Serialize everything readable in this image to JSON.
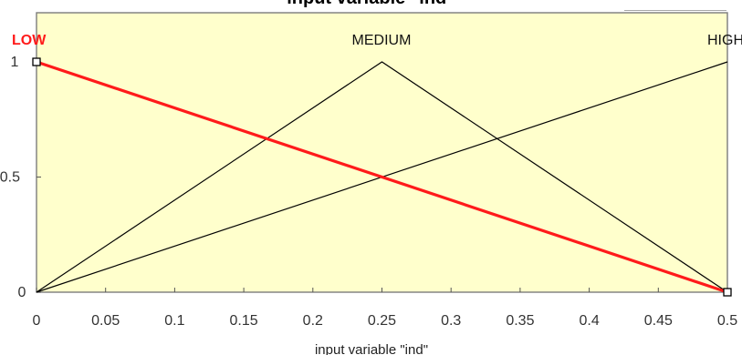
{
  "window": {
    "title_fragment": "input variable \"ind\""
  },
  "chart_data": {
    "type": "line",
    "title": "",
    "xlabel": "input variable \"ind\"",
    "ylabel": "",
    "xlim": [
      0,
      0.5
    ],
    "ylim": [
      0,
      1
    ],
    "x_ticks": [
      "0",
      "0.05",
      "0.1",
      "0.15",
      "0.2",
      "0.25",
      "0.3",
      "0.35",
      "0.4",
      "0.45",
      "0.5"
    ],
    "y_ticks": [
      "0",
      "0.5",
      "1"
    ],
    "grid": false,
    "legend": "none",
    "series": [
      {
        "name": "LOW",
        "points": [
          [
            0,
            1
          ],
          [
            0.5,
            0
          ]
        ],
        "color": "#ff1a1a",
        "selected": true
      },
      {
        "name": "MEDIUM",
        "points": [
          [
            0,
            0
          ],
          [
            0.25,
            1
          ],
          [
            0.5,
            0
          ]
        ],
        "color": "#000000",
        "selected": false
      },
      {
        "name": "HIGH",
        "points": [
          [
            0,
            0
          ],
          [
            0.5,
            1
          ]
        ],
        "color": "#000000",
        "selected": false
      }
    ]
  }
}
